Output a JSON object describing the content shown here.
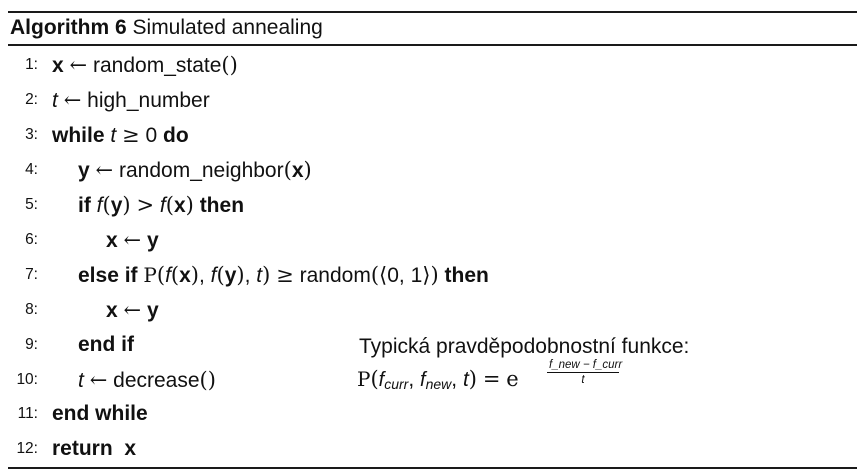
{
  "caption": {
    "label": "Algorithm 6",
    "title": "Simulated annealing"
  },
  "line_numbers": [
    "1:",
    "2:",
    "3:",
    "4:",
    "5:",
    "6:",
    "7:",
    "8:",
    "9:",
    "10:",
    "11:",
    "12:"
  ],
  "keywords": {
    "while": "while",
    "do": "do",
    "if": "if",
    "then": "then",
    "else_if": "else if",
    "end_if": "end if",
    "end_while": "end while",
    "return": "return"
  },
  "vars": {
    "x": "x",
    "y": "y",
    "t": "t",
    "f": "f"
  },
  "symbols": {
    "larrow": "←",
    "geq": "≥",
    "gt": ">",
    "P": "P",
    "e": "e",
    "langle": "⟨",
    "rangle": "⟩"
  },
  "functions": {
    "random_state": "random_state",
    "high_number": "high_number",
    "random_neighbor": "random_neighbor",
    "random": "random",
    "decrease": "decrease"
  },
  "numbers": {
    "zero": "0",
    "interval": "0, 1"
  },
  "note": {
    "title": "Typická pravděpodobnostní funkce:",
    "f_curr": "f",
    "curr_sub": "curr",
    "f_new": "f",
    "new_sub": "new",
    "exp_numerator": "f_new − f_curr",
    "exp_denominator": "t"
  }
}
